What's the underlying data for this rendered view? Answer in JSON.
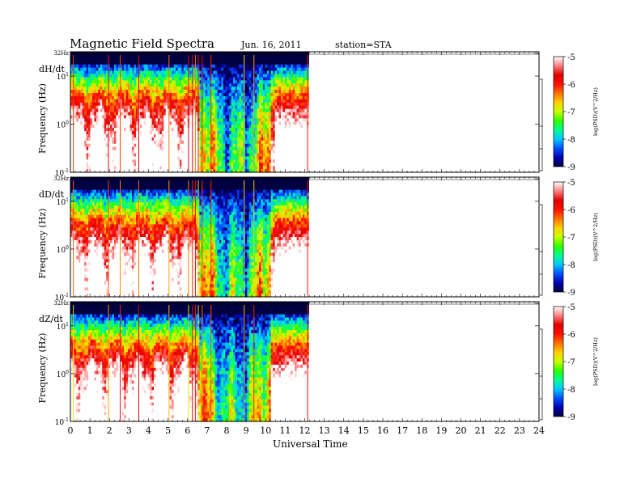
{
  "header": {
    "title": "Magnetic  Field  Spectra",
    "date": "Jun. 16, 2011",
    "station": "station=STA"
  },
  "colorbar": {
    "label": "log(PSD)(V^2/Hz)",
    "ticks": [
      "-5",
      "-6",
      "-7",
      "-8",
      "-9"
    ],
    "colors": [
      "#000040",
      "#0000b0",
      "#0050ff",
      "#00c8ff",
      "#00ff90",
      "#30ff00",
      "#c8ff00",
      "#ffd000",
      "#ff7000",
      "#ff1000",
      "#e00000",
      "#ff8080",
      "#ffffff"
    ]
  },
  "chart_data": {
    "type": "heatmap",
    "title": "Magnetic  Field  Spectra",
    "xlabel": "Universal Time",
    "xlim": [
      0,
      24
    ],
    "x_ticks": [
      "0",
      "1",
      "2",
      "3",
      "4",
      "5",
      "6",
      "7",
      "8",
      "9",
      "10",
      "11",
      "12",
      "13",
      "14",
      "15",
      "16",
      "17",
      "18",
      "19",
      "20",
      "21",
      "22",
      "23",
      "24"
    ],
    "ylabel": "Frequency (Hz)",
    "ylim_hz": [
      0.1,
      32
    ],
    "yscale": "log",
    "y_tick_labels": [
      "32Hz",
      "10^1",
      "10^0",
      "10^-1"
    ],
    "data_end_hour": 12.2,
    "color_scale": {
      "label": "log(PSD)(V^2/Hz)",
      "min": -9,
      "max": -5
    },
    "panels": [
      {
        "component": "dH/dt",
        "peak_log_psd": -5,
        "min_log_psd": -9
      },
      {
        "component": "dD/dt",
        "peak_log_psd": -5,
        "min_log_psd": -9
      },
      {
        "component": "dZ/dt",
        "peak_log_psd": -5,
        "min_log_psd": -9
      }
    ]
  }
}
